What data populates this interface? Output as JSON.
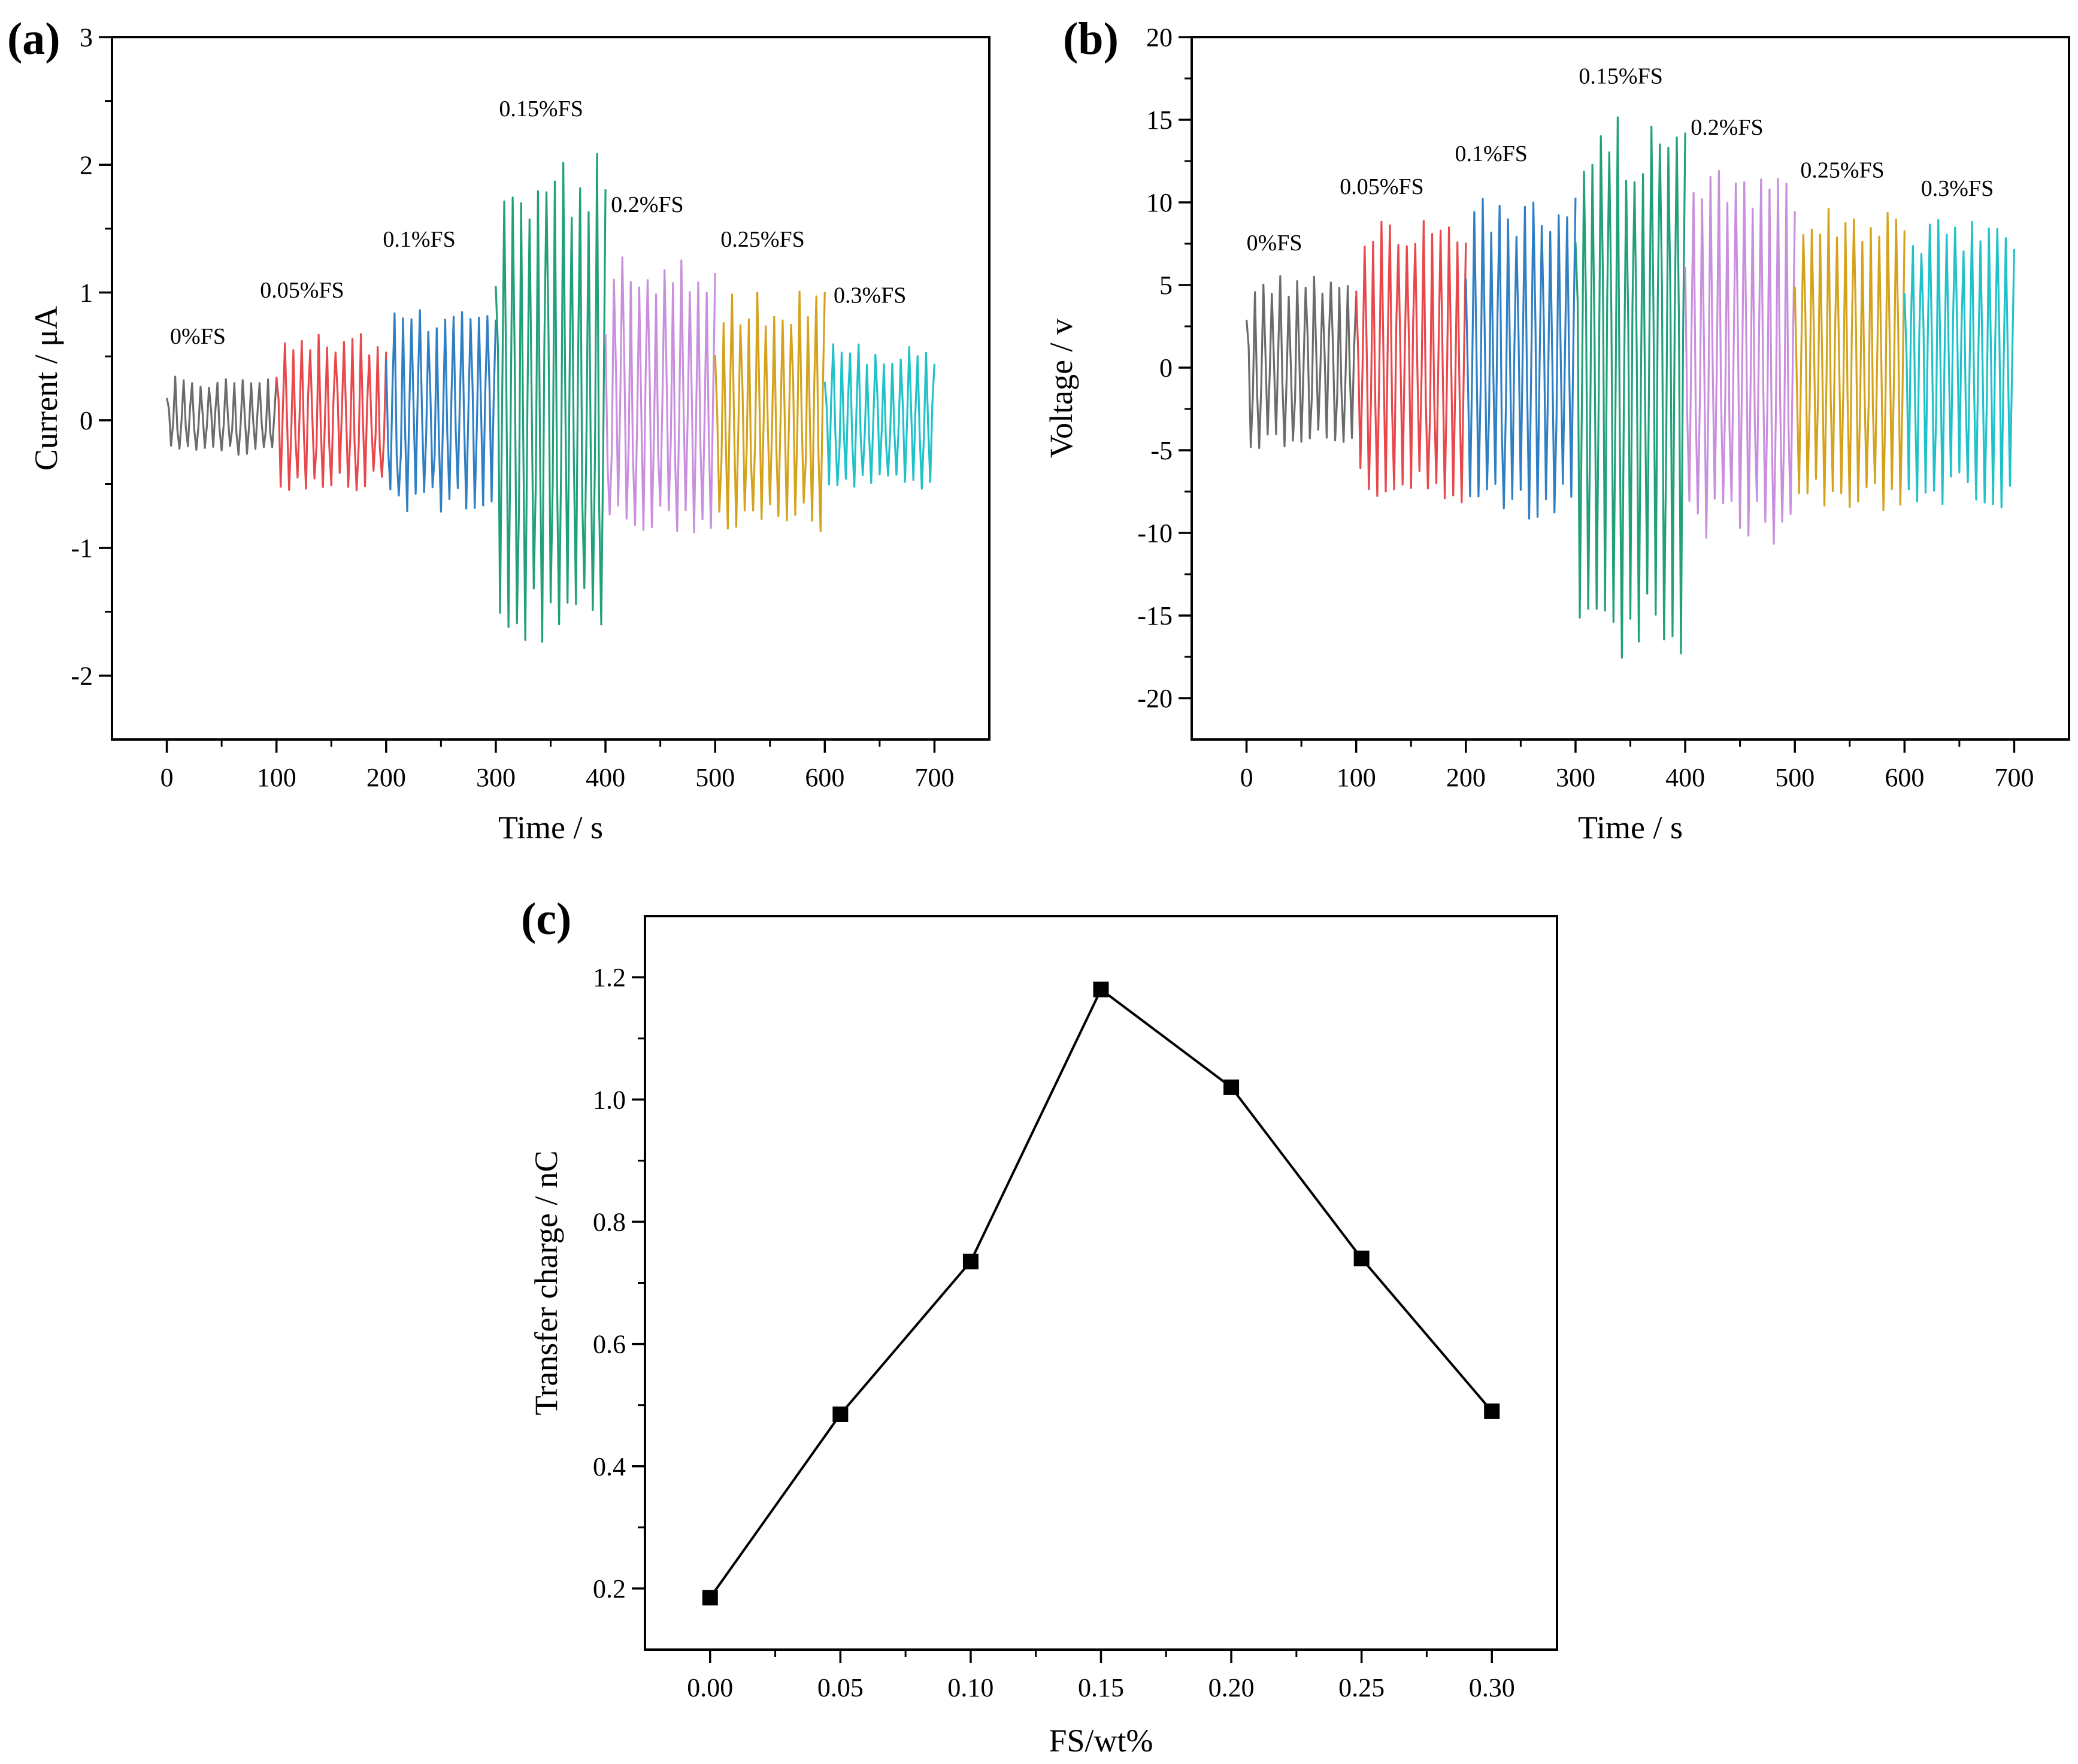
{
  "chart_data": [
    {
      "id": "a",
      "type": "line",
      "panel_label": "(a)",
      "xlabel": "Time / s",
      "ylabel": "Current / μA",
      "xlim": [
        -50,
        750
      ],
      "ylim": [
        -2.5,
        3
      ],
      "xticks": [
        0,
        100,
        200,
        300,
        400,
        500,
        600,
        700
      ],
      "xtick_labels": [
        "0",
        "100",
        "200",
        "300",
        "400",
        "500",
        "600",
        "700"
      ],
      "yticks": [
        -2,
        -1,
        0,
        1,
        2,
        3
      ],
      "ytick_labels": [
        "-2",
        "-1",
        "0",
        "1",
        "2",
        "3"
      ],
      "series": [
        {
          "name": "0%FS",
          "color": "#6b6b6b",
          "x_range": [
            0,
            100
          ],
          "pos_peak": 0.35,
          "neg_peak": -0.27,
          "label_pos": [
            3,
            0.6
          ]
        },
        {
          "name": "0.05%FS",
          "color": "#e8474b",
          "x_range": [
            100,
            200
          ],
          "pos_peak": 0.68,
          "neg_peak": -0.55,
          "label_pos": [
            85,
            0.96
          ]
        },
        {
          "name": "0.1%FS",
          "color": "#2f7fc4",
          "x_range": [
            200,
            300
          ],
          "pos_peak": 0.95,
          "neg_peak": -0.72,
          "label_pos": [
            197,
            1.36
          ]
        },
        {
          "name": "0.15%FS",
          "color": "#21a07a",
          "x_range": [
            300,
            400
          ],
          "pos_peak": 2.1,
          "neg_peak": -1.75,
          "label_pos": [
            303,
            2.38
          ]
        },
        {
          "name": "0.2%FS",
          "color": "#c98fde",
          "x_range": [
            400,
            500
          ],
          "pos_peak": 1.35,
          "neg_peak": -0.9,
          "label_pos": [
            405,
            1.63
          ]
        },
        {
          "name": "0.25%FS",
          "color": "#d4a21b",
          "x_range": [
            500,
            600
          ],
          "pos_peak": 1.02,
          "neg_peak": -0.88,
          "label_pos": [
            505,
            1.36
          ]
        },
        {
          "name": "0.3%FS",
          "color": "#1ec2c8",
          "x_range": [
            600,
            700
          ],
          "pos_peak": 0.6,
          "neg_peak": -0.58,
          "label_pos": [
            608,
            0.92
          ]
        }
      ]
    },
    {
      "id": "b",
      "type": "line",
      "panel_label": "(b)",
      "xlabel": "Time / s",
      "ylabel": "Voltage / v",
      "xlim": [
        -50,
        750
      ],
      "ylim": [
        -22.5,
        20
      ],
      "xticks": [
        0,
        100,
        200,
        300,
        400,
        500,
        600,
        700
      ],
      "xtick_labels": [
        "0",
        "100",
        "200",
        "300",
        "400",
        "500",
        "600",
        "700"
      ],
      "yticks": [
        -20,
        -15,
        -10,
        -5,
        0,
        5,
        10,
        15,
        20
      ],
      "ytick_labels": [
        "-20",
        "-15",
        "-10",
        "-5",
        "0",
        "5",
        "10",
        "15",
        "20"
      ],
      "series": [
        {
          "name": "0%FS",
          "color": "#6b6b6b",
          "x_range": [
            0,
            100
          ],
          "pos_peak": 5.8,
          "neg_peak": -5.2,
          "label_pos": [
            0,
            7.1
          ]
        },
        {
          "name": "0.05%FS",
          "color": "#e8474b",
          "x_range": [
            100,
            200
          ],
          "pos_peak": 9.3,
          "neg_peak": -8.3,
          "label_pos": [
            85,
            10.5
          ]
        },
        {
          "name": "0.1%FS",
          "color": "#2f7fc4",
          "x_range": [
            200,
            300
          ],
          "pos_peak": 10.8,
          "neg_peak": -9.6,
          "label_pos": [
            190,
            12.5
          ]
        },
        {
          "name": "0.15%FS",
          "color": "#21a07a",
          "x_range": [
            300,
            400
          ],
          "pos_peak": 15.2,
          "neg_peak": -17.8,
          "label_pos": [
            303,
            17.2
          ]
        },
        {
          "name": "0.2%FS",
          "color": "#c98fde",
          "x_range": [
            400,
            500
          ],
          "pos_peak": 12.2,
          "neg_peak": -10.8,
          "label_pos": [
            405,
            14.1
          ]
        },
        {
          "name": "0.25%FS",
          "color": "#d4a21b",
          "x_range": [
            500,
            600
          ],
          "pos_peak": 9.8,
          "neg_peak": -9.2,
          "label_pos": [
            505,
            11.5
          ]
        },
        {
          "name": "0.3%FS",
          "color": "#1ec2c8",
          "x_range": [
            600,
            700
          ],
          "pos_peak": 9.0,
          "neg_peak": -8.8,
          "label_pos": [
            615,
            10.4
          ]
        }
      ]
    },
    {
      "id": "c",
      "type": "line",
      "panel_label": "(c)",
      "xlabel": "FS/wt%",
      "ylabel": "Transfer charge / nC",
      "xlim": [
        -0.025,
        0.325
      ],
      "ylim": [
        0.1,
        1.3
      ],
      "xticks": [
        0,
        0.05,
        0.1,
        0.15,
        0.2,
        0.25,
        0.3
      ],
      "xtick_labels": [
        "0.00",
        "0.05",
        "0.10",
        "0.15",
        "0.20",
        "0.25",
        "0.30"
      ],
      "yticks": [
        0.2,
        0.4,
        0.6,
        0.8,
        1.0,
        1.2
      ],
      "ytick_labels": [
        "0.2",
        "0.4",
        "0.6",
        "0.8",
        "1.0",
        "1.2"
      ],
      "x": [
        0,
        0.05,
        0.1,
        0.15,
        0.2,
        0.25,
        0.3
      ],
      "y": [
        0.185,
        0.485,
        0.735,
        1.18,
        1.02,
        0.74,
        0.49
      ],
      "marker": "square",
      "color": "#000000"
    }
  ]
}
